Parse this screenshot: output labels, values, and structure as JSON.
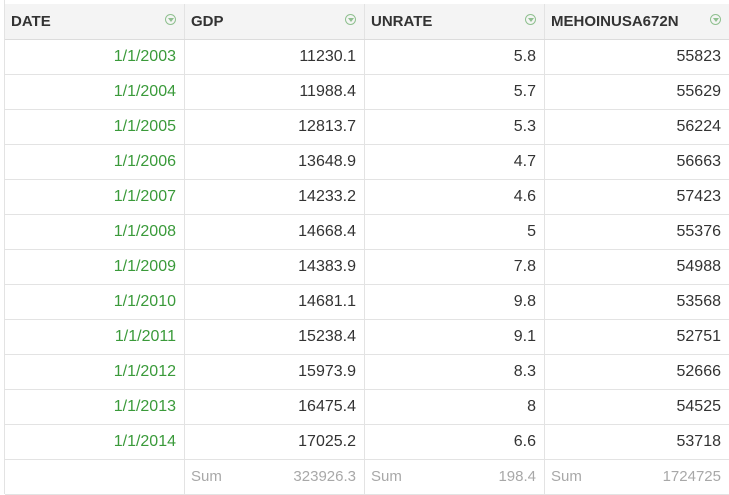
{
  "columns": [
    {
      "label": "DATE"
    },
    {
      "label": "GDP"
    },
    {
      "label": "UNRATE"
    },
    {
      "label": "MEHOINUSA672N"
    }
  ],
  "rows": [
    {
      "date": "1/1/2003",
      "gdp": "11230.1",
      "unrate": "5.8",
      "income": "55823"
    },
    {
      "date": "1/1/2004",
      "gdp": "11988.4",
      "unrate": "5.7",
      "income": "55629"
    },
    {
      "date": "1/1/2005",
      "gdp": "12813.7",
      "unrate": "5.3",
      "income": "56224"
    },
    {
      "date": "1/1/2006",
      "gdp": "13648.9",
      "unrate": "4.7",
      "income": "56663"
    },
    {
      "date": "1/1/2007",
      "gdp": "14233.2",
      "unrate": "4.6",
      "income": "57423"
    },
    {
      "date": "1/1/2008",
      "gdp": "14668.4",
      "unrate": "5",
      "income": "55376"
    },
    {
      "date": "1/1/2009",
      "gdp": "14383.9",
      "unrate": "7.8",
      "income": "54988"
    },
    {
      "date": "1/1/2010",
      "gdp": "14681.1",
      "unrate": "9.8",
      "income": "53568"
    },
    {
      "date": "1/1/2011",
      "gdp": "15238.4",
      "unrate": "9.1",
      "income": "52751"
    },
    {
      "date": "1/1/2012",
      "gdp": "15973.9",
      "unrate": "8.3",
      "income": "52666"
    },
    {
      "date": "1/1/2013",
      "gdp": "16475.4",
      "unrate": "8",
      "income": "54525"
    },
    {
      "date": "1/1/2014",
      "gdp": "17025.2",
      "unrate": "6.6",
      "income": "53718"
    }
  ],
  "sums": {
    "label": "Sum",
    "gdp": "323926.3",
    "unrate": "198.4",
    "income": "1724725"
  },
  "colors": {
    "date_text": "#3a9a3a",
    "header_bg": "#f4f4f4",
    "grid": "#e3e3e3",
    "sum_text": "#a8a8a8"
  }
}
